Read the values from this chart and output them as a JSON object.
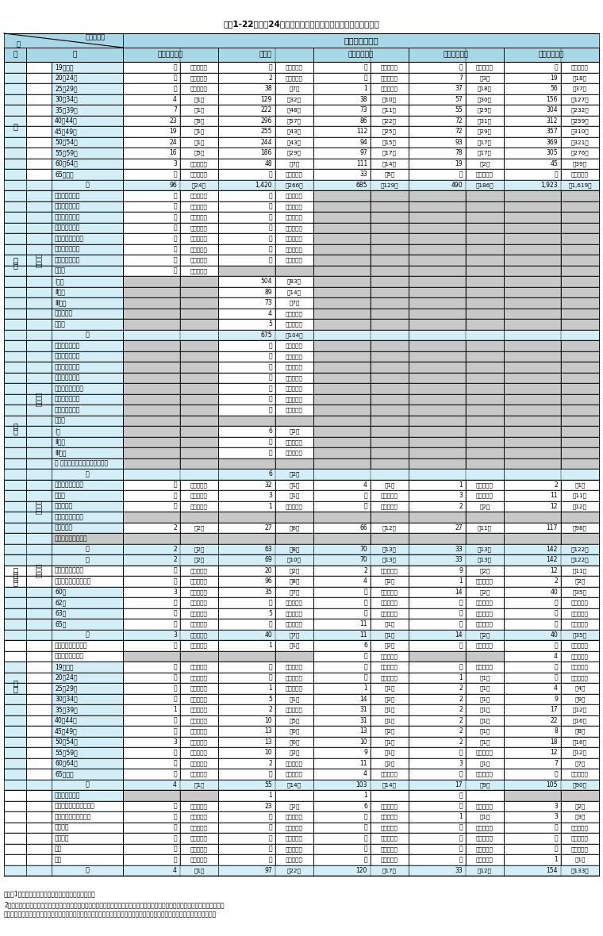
{
  "title": "資料1-22　平成24年度における職員の在職、離職状況等一覧表",
  "col_headers": [
    "教育職（二）",
    "研究職",
    "医療職（一）",
    "医療職（二）",
    "医療職（三）"
  ],
  "note1": "（注）1　各項目右欄の（　）内は女性の内数を示す。",
  "note2": "2「特・地・公等」とは、特別職に属する職、地方公務員の職、特定独立行政法人以外の独立行政法人に属する職、国立大学法人又は",
  "note3": "　　大学共同利用機関法人に属する職及び公庫、公団又は事業団等の国との人事交流の対象となっている法人に属する職をいう。",
  "color_header": "#a8d8e8",
  "color_light": "#d4eef7",
  "color_gray": "#c8c8c8",
  "color_white": "#ffffff",
  "color_subheader": "#b8dde8"
}
